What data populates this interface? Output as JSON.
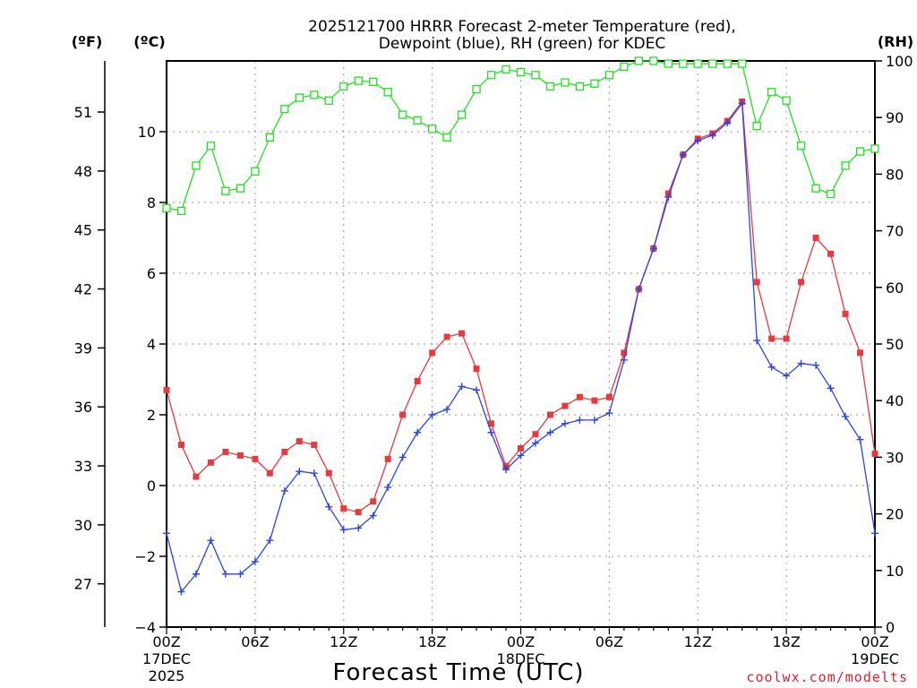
{
  "chart_data": {
    "type": "line",
    "title_line1": "2025121700 HRRR Forecast 2-meter Temperature (red),",
    "title_line2": "Dewpoint (blue), RH (green) for KDEC",
    "xlabel": "Forecast Time (UTC)",
    "credit": "coolwx.com/modelts",
    "units": {
      "fahrenheit": "(ºF)",
      "celsius": "(ºC)",
      "rh": "(RH)"
    },
    "x_hours": {
      "start": 0,
      "end": 48
    },
    "ylim_c": [
      -4,
      12
    ],
    "ylim_rh": [
      0,
      100
    ],
    "grid": true,
    "y_ticks_c": [
      "−4",
      "−2",
      "0",
      "2",
      "4",
      "6",
      "8",
      "10"
    ],
    "y_ticks_f": [
      "27",
      "30",
      "33",
      "36",
      "39",
      "42",
      "45",
      "48",
      "51"
    ],
    "y_ticks_rh": [
      "0",
      "10",
      "20",
      "30",
      "40",
      "50",
      "60",
      "70",
      "80",
      "90",
      "100"
    ],
    "x_ticks": [
      {
        "hour": 0,
        "label": "00Z",
        "sub1": "17DEC",
        "sub2": "2025"
      },
      {
        "hour": 6,
        "label": "06Z",
        "sub1": "",
        "sub2": ""
      },
      {
        "hour": 12,
        "label": "12Z",
        "sub1": "",
        "sub2": ""
      },
      {
        "hour": 18,
        "label": "18Z",
        "sub1": "",
        "sub2": ""
      },
      {
        "hour": 24,
        "label": "00Z",
        "sub1": "18DEC",
        "sub2": ""
      },
      {
        "hour": 30,
        "label": "06Z",
        "sub1": "",
        "sub2": ""
      },
      {
        "hour": 36,
        "label": "12Z",
        "sub1": "",
        "sub2": ""
      },
      {
        "hour": 42,
        "label": "18Z",
        "sub1": "",
        "sub2": ""
      },
      {
        "hour": 48,
        "label": "00Z",
        "sub1": "19DEC",
        "sub2": ""
      }
    ],
    "series": [
      {
        "name": "Temperature",
        "color": "#e8393f",
        "marker": "square",
        "axis": "c",
        "values": [
          2.7,
          1.15,
          0.25,
          0.65,
          0.95,
          0.85,
          0.75,
          0.35,
          0.95,
          1.25,
          1.15,
          0.35,
          -0.65,
          -0.75,
          -0.45,
          0.75,
          2.0,
          2.95,
          3.75,
          4.2,
          4.3,
          3.3,
          1.75,
          0.55,
          1.05,
          1.45,
          2.0,
          2.25,
          2.5,
          2.4,
          2.5,
          3.75,
          5.55,
          6.7,
          8.25,
          9.35,
          9.8,
          9.95,
          10.3,
          10.85,
          5.75,
          4.15,
          4.15,
          5.75,
          7.0,
          6.55,
          4.85,
          3.75,
          0.9
        ]
      },
      {
        "name": "Dewpoint",
        "color": "#2b45e0",
        "marker": "plus",
        "axis": "c",
        "values": [
          -1.35,
          -3.0,
          -2.5,
          -1.55,
          -2.5,
          -2.5,
          -2.15,
          -1.55,
          -0.15,
          0.4,
          0.35,
          -0.6,
          -1.25,
          -1.2,
          -0.85,
          -0.05,
          0.8,
          1.5,
          2.0,
          2.15,
          2.8,
          2.7,
          1.5,
          0.45,
          0.85,
          1.2,
          1.5,
          1.75,
          1.85,
          1.85,
          2.05,
          3.55,
          5.55,
          6.7,
          8.15,
          9.35,
          9.75,
          9.9,
          10.25,
          10.8,
          4.1,
          3.35,
          3.1,
          3.45,
          3.4,
          2.75,
          1.95,
          1.3,
          -1.35
        ]
      },
      {
        "name": "RH",
        "color": "#22e022",
        "marker": "open-square",
        "axis": "rh",
        "values": [
          74,
          73.5,
          81.5,
          85,
          77,
          77.5,
          80.5,
          86.5,
          91.5,
          93.5,
          94,
          93,
          95.5,
          96.5,
          96.3,
          94.5,
          90.5,
          89.5,
          88,
          86.5,
          90.5,
          95,
          97.5,
          98.5,
          98,
          97.5,
          95.5,
          96.2,
          95.5,
          96,
          97.5,
          99,
          100,
          100,
          99.5,
          99.5,
          99.5,
          99.5,
          99.5,
          99.5,
          88.5,
          94.5,
          93,
          85,
          77.5,
          76.5,
          81.5,
          84,
          84.5
        ]
      }
    ]
  }
}
